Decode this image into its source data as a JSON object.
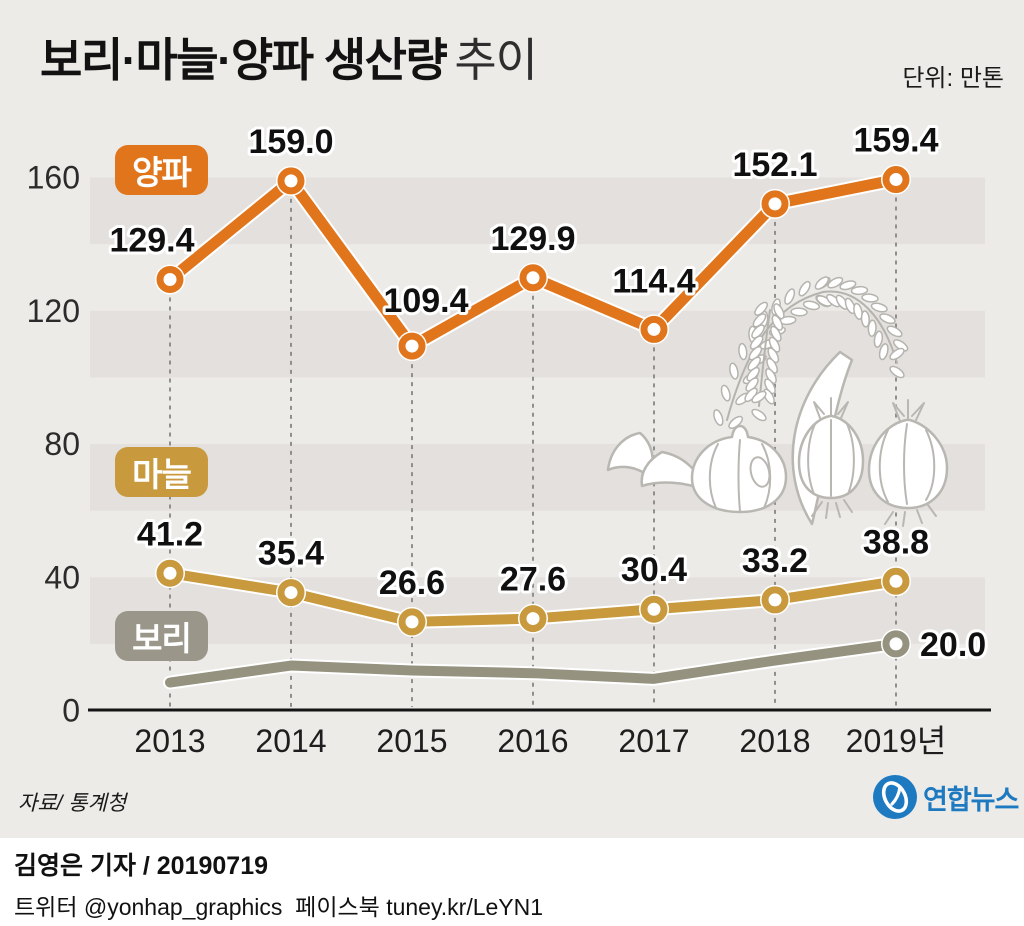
{
  "title": {
    "main": "보리·마늘·양파 생산량",
    "sub": "추이",
    "unit": "단위: 만톤"
  },
  "chart_data": {
    "type": "line",
    "title": "보리·마늘·양파 생산량 추이",
    "unit": "만톤",
    "x": [
      2013,
      2014,
      2015,
      2016,
      2017,
      2018,
      2019
    ],
    "x_tick_labels": [
      "2013",
      "2014",
      "2015",
      "2016",
      "2017",
      "2018",
      "2019년"
    ],
    "y_ticks": [
      0,
      40,
      80,
      120,
      160
    ],
    "y_tick_labels": [
      "0",
      "40",
      "80",
      "120",
      "160"
    ],
    "ylim": [
      0,
      175
    ],
    "band_step": 20,
    "legend_position": "inline-left-badges",
    "series": [
      {
        "name": "양파",
        "name_en": "onion",
        "color": "#e0751c",
        "marker_style": "all",
        "values": [
          129.4,
          159.0,
          109.4,
          129.9,
          114.4,
          152.1,
          159.4
        ],
        "value_labels": [
          "129.4",
          "159.0",
          "109.4",
          "129.9",
          "114.4",
          "152.1",
          "159.4"
        ]
      },
      {
        "name": "마늘",
        "name_en": "garlic",
        "color": "#c8993d",
        "marker_style": "all",
        "values": [
          41.2,
          35.4,
          26.6,
          27.6,
          30.4,
          33.2,
          38.8
        ],
        "value_labels": [
          "41.2",
          "35.4",
          "26.6",
          "27.6",
          "30.4",
          "33.2",
          "38.8"
        ]
      },
      {
        "name": "보리",
        "name_en": "barley",
        "color": "#95927f",
        "badge_color": "#9a978a",
        "marker_style": "last",
        "values": [
          8.4,
          13.5,
          12.0,
          11.2,
          9.5,
          15.0,
          20.0
        ],
        "value_labels": [
          "",
          "",
          "",
          "",
          "",
          "",
          "20.0"
        ]
      }
    ]
  },
  "source": "자료/ 통계청",
  "logo": {
    "text": "연합뉴스",
    "color": "#1d79c0"
  },
  "footer": {
    "byline": "김영은 기자 / 20190719",
    "social": "트위터 @yonhap_graphics  페이스북 tuney.kr/LeYN1"
  },
  "colors": {
    "background": "#edebe8",
    "stripe": "#e3e0dd",
    "axis": "#141414",
    "guide": "#8f8f8f",
    "value_text": "#101010",
    "footer_bg": "#ffffff"
  }
}
